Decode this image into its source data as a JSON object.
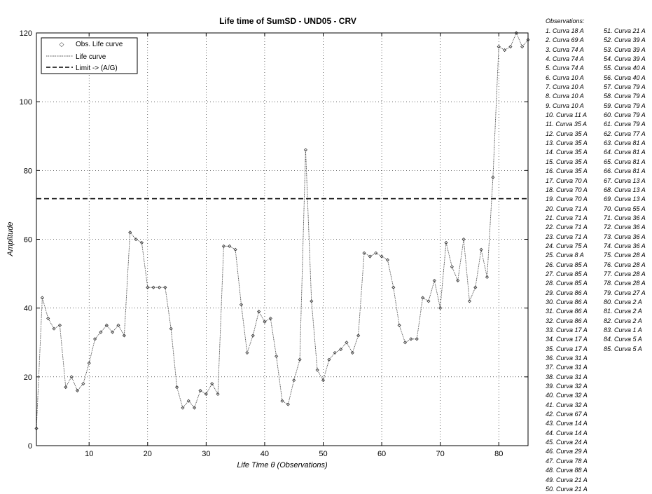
{
  "chart_data": {
    "type": "line",
    "title": "Life time of SumSD - UND05 - CRV",
    "xlabel": "Life Time θ (Observations)",
    "ylabel": "Amplitude",
    "xlim": [
      1,
      85
    ],
    "ylim": [
      0,
      120
    ],
    "xticks": [
      10,
      20,
      30,
      40,
      50,
      60,
      70,
      80
    ],
    "yticks": [
      0,
      20,
      40,
      60,
      80,
      100,
      120
    ],
    "grid": true,
    "legend_position": "top-left",
    "legend": [
      "Obs. Life curve",
      "Life curve",
      "Limit -> (A/G)"
    ],
    "limit": 71.8,
    "series": [
      {
        "name": "Life curve",
        "x": [
          1,
          2,
          3,
          4,
          5,
          6,
          7,
          8,
          9,
          10,
          11,
          12,
          13,
          14,
          15,
          16,
          17,
          18,
          19,
          20,
          21,
          22,
          23,
          24,
          25,
          26,
          27,
          28,
          29,
          30,
          31,
          32,
          33,
          34,
          35,
          36,
          37,
          38,
          39,
          40,
          41,
          42,
          43,
          44,
          45,
          46,
          47,
          48,
          49,
          50,
          51,
          52,
          53,
          54,
          55,
          56,
          57,
          58,
          59,
          60,
          61,
          62,
          63,
          64,
          65,
          66,
          67,
          68,
          69,
          70,
          71,
          72,
          73,
          74,
          75,
          76,
          77,
          78,
          79,
          80,
          81,
          82,
          83,
          84,
          85
        ],
        "values": [
          5,
          43,
          37,
          34,
          35,
          17,
          20,
          16,
          18,
          24,
          31,
          33,
          35,
          33,
          35,
          32,
          62,
          60,
          59,
          46,
          46,
          46,
          46,
          34,
          17,
          11,
          13,
          11,
          16,
          15,
          18,
          15,
          58,
          58,
          57,
          41,
          27,
          32,
          39,
          36,
          37,
          26,
          13,
          12,
          19,
          25,
          86,
          42,
          22,
          19,
          25,
          27,
          28,
          30,
          27,
          32,
          56,
          55,
          56,
          55,
          54,
          46,
          35,
          30,
          31,
          31,
          43,
          42,
          48,
          40,
          59,
          52,
          48,
          60,
          42,
          46,
          57,
          49,
          78,
          116,
          115,
          116,
          120,
          116,
          118
        ]
      }
    ]
  },
  "observations": {
    "title": "Observations:",
    "col1": [
      "1. Curva 18 A",
      "2. Curva 69 A",
      "3. Curva 74 A",
      "4. Curva 74 A",
      "5. Curva 74 A",
      "6. Curva 10 A",
      "7. Curva 10 A",
      "8. Curva 10 A",
      "9. Curva 10 A",
      "10. Curva 11 A",
      "11. Curva 35 A",
      "12. Curva 35 A",
      "13. Curva 35 A",
      "14. Curva 35 A",
      "15. Curva 35 A",
      "16. Curva 35 A",
      "17. Curva 70 A",
      "18. Curva 70 A",
      "19. Curva 70 A",
      "20. Curva 71 A",
      "21. Curva 71 A",
      "22. Curva 71 A",
      "23. Curva 71 A",
      "24. Curva 75 A",
      "25. Curva 8 A",
      "26. Curva 85 A",
      "27. Curva 85 A",
      "28. Curva 85 A",
      "29. Curva 86 A",
      "30. Curva 86 A",
      "31. Curva 86 A",
      "32. Curva 86 A",
      "33. Curva 17 A",
      "34. Curva 17 A",
      "35. Curva 17 A",
      "36. Curva 31 A",
      "37. Curva 31 A",
      "38. Curva 31 A",
      "39. Curva 32 A",
      "40. Curva 32 A",
      "41. Curva 32 A",
      "42. Curva 67 A",
      "43. Curva 14 A",
      "44. Curva 14 A",
      "45. Curva 24 A",
      "46. Curva 29 A",
      "47. Curva 78 A",
      "48. Curva 88 A",
      "49. Curva 21 A",
      "50. Curva 21 A"
    ],
    "col2": [
      "51. Curva 21 A",
      "52. Curva 39 A",
      "53. Curva 39 A",
      "54. Curva 39 A",
      "55. Curva 40 A",
      "56. Curva 40 A",
      "57. Curva 79 A",
      "58. Curva 79 A",
      "59. Curva 79 A",
      "60. Curva 79 A",
      "61. Curva 79 A",
      "62. Curva 77 A",
      "63. Curva 81 A",
      "64. Curva 81 A",
      "65. Curva 81 A",
      "66. Curva 81 A",
      "67. Curva 13 A",
      "68. Curva 13 A",
      "69. Curva 13 A",
      "70. Curva 55 A",
      "71. Curva 36 A",
      "72. Curva 36 A",
      "73. Curva 36 A",
      "74. Curva 36 A",
      "75. Curva 28 A",
      "76. Curva 28 A",
      "77. Curva 28 A",
      "78. Curva 28 A",
      "79. Curva 27 A",
      "80. Curva 2 A",
      "81. Curva 2 A",
      "82. Curva 2 A",
      "83. Curva 1 A",
      "84. Curva 5 A",
      "85. Curva 5 A"
    ]
  }
}
